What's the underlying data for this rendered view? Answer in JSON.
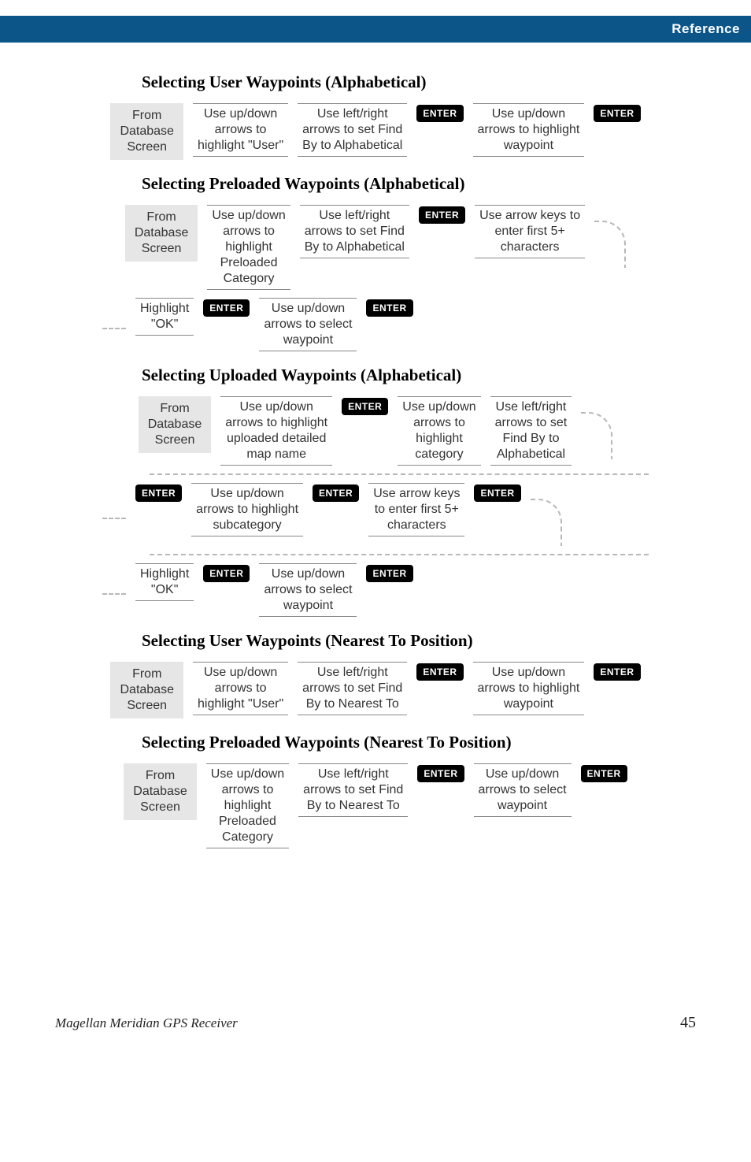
{
  "tab": "Reference",
  "sections": [
    {
      "heading": "Selecting User Waypoints (Alphabetical)",
      "rows": [
        {
          "startShade": "From\nDatabase\nScreen",
          "cells": [
            {
              "type": "step",
              "text": "Use up/down\narrows to\nhighlight \"User\""
            },
            {
              "type": "step",
              "text": "Use left/right\narrows to set Find\nBy to Alphabetical"
            },
            {
              "type": "enter"
            },
            {
              "type": "step",
              "text": "Use up/down\narrows to highlight\nwaypoint"
            },
            {
              "type": "enter"
            }
          ]
        }
      ]
    },
    {
      "heading": "Selecting Preloaded Waypoints (Alphabetical)",
      "rows": [
        {
          "startShade": "From\nDatabase\nScreen",
          "cells": [
            {
              "type": "step",
              "text": "Use up/down\narrows to\nhighlight\nPreloaded\nCategory"
            },
            {
              "type": "step",
              "text": "Use left/right\narrows to set Find\nBy to Alphabetical"
            },
            {
              "type": "enter"
            },
            {
              "type": "step",
              "text": "Use arrow keys to\nenter first 5+\ncharacters"
            },
            {
              "type": "arcright"
            }
          ]
        },
        {
          "startShade": null,
          "leftDash": true,
          "cells": [
            {
              "type": "step",
              "text": "Highlight\n\"OK\""
            },
            {
              "type": "enter"
            },
            {
              "type": "step",
              "text": "Use up/down\narrows to select\nwaypoint"
            },
            {
              "type": "enter"
            }
          ]
        }
      ]
    },
    {
      "heading": "Selecting Uploaded Waypoints (Alphabetical)",
      "rows": [
        {
          "startShade": "From\nDatabase\nScreen",
          "cells": [
            {
              "type": "step",
              "text": "Use up/down\narrows to highlight\nuploaded detailed\nmap name"
            },
            {
              "type": "enter"
            },
            {
              "type": "step",
              "text": "Use up/down\narrows to\nhighlight\ncategory"
            },
            {
              "type": "step",
              "text": "Use left/right\narrows to set\nFind By to\nAlphabetical"
            },
            {
              "type": "arcright"
            }
          ]
        },
        {
          "sep": true
        },
        {
          "startShade": null,
          "leftDash": true,
          "cells": [
            {
              "type": "enter"
            },
            {
              "type": "step",
              "text": "Use up/down\narrows to highlight\nsubcategory"
            },
            {
              "type": "enter"
            },
            {
              "type": "step",
              "text": "Use arrow keys\nto enter first 5+\ncharacters"
            },
            {
              "type": "enter"
            },
            {
              "type": "arcright"
            }
          ]
        },
        {
          "sep": true
        },
        {
          "startShade": null,
          "leftDash": true,
          "cells": [
            {
              "type": "step",
              "text": "Highlight\n\"OK\""
            },
            {
              "type": "enter"
            },
            {
              "type": "step",
              "text": "Use up/down\narrows to select\nwaypoint"
            },
            {
              "type": "enter"
            }
          ]
        }
      ]
    },
    {
      "heading": "Selecting User Waypoints (Nearest To Position)",
      "rows": [
        {
          "startShade": "From\nDatabase\nScreen",
          "cells": [
            {
              "type": "step",
              "text": "Use up/down\narrows to\nhighlight \"User\""
            },
            {
              "type": "step",
              "text": "Use left/right\narrows to set Find\nBy to Nearest To"
            },
            {
              "type": "enter"
            },
            {
              "type": "step",
              "text": "Use up/down\narrows to highlight\nwaypoint"
            },
            {
              "type": "enter"
            }
          ]
        }
      ]
    },
    {
      "heading": "Selecting Preloaded Waypoints (Nearest To Position)",
      "rows": [
        {
          "startShade": "From\nDatabase\nScreen",
          "cells": [
            {
              "type": "step",
              "text": "Use up/down\narrows to\nhighlight\nPreloaded\nCategory"
            },
            {
              "type": "step",
              "text": "Use left/right\narrows to set Find\nBy to Nearest To"
            },
            {
              "type": "enter"
            },
            {
              "type": "step",
              "text": "Use up/down\narrows to select\nwaypoint"
            },
            {
              "type": "enter"
            }
          ]
        }
      ]
    }
  ],
  "enterLabel": "ENTER",
  "footer": {
    "title": "Magellan Meridian GPS Receiver",
    "page": "45"
  }
}
